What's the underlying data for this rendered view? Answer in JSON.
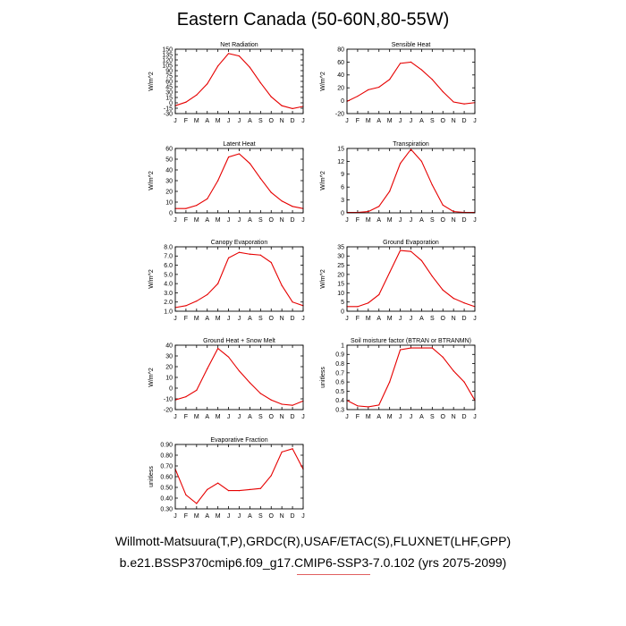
{
  "title": "Eastern Canada (50-60N,80-55W)",
  "footer": {
    "line1": "Willmott-Matsuura(T,P),GRDC(R),USAF/ETAC(S),FLUXNET(LHF,GPP)",
    "line2": "b.e21.BSSP370cmip6.f09_g17.CMIP6-SSP3-7.0.102 (yrs 2075-2099)"
  },
  "colors": {
    "line": "#e60000",
    "axis": "#000000"
  },
  "chart_data": [
    {
      "type": "line",
      "title": "Net Radiation",
      "ylabel": "W/m^2",
      "xlabel": "",
      "categories": [
        "J",
        "F",
        "M",
        "A",
        "M",
        "J",
        "J",
        "A",
        "S",
        "O",
        "N",
        "D",
        "J"
      ],
      "values": [
        -8,
        2,
        22,
        53,
        103,
        138,
        131,
        99,
        56,
        17,
        -8,
        -16,
        -10
      ],
      "ylim": [
        -30,
        150
      ],
      "yticks": [
        -30,
        -15,
        0,
        15,
        30,
        45,
        60,
        75,
        90,
        105,
        120,
        135,
        150
      ],
      "grid": false
    },
    {
      "type": "line",
      "title": "Sensible Heat",
      "ylabel": "W/m^2",
      "xlabel": "",
      "categories": [
        "J",
        "F",
        "M",
        "A",
        "M",
        "J",
        "J",
        "A",
        "S",
        "O",
        "N",
        "D",
        "J"
      ],
      "values": [
        -1,
        7,
        17,
        21,
        33,
        58,
        60,
        48,
        33,
        14,
        -2,
        -5,
        -3
      ],
      "ylim": [
        -20,
        80
      ],
      "yticks": [
        -20,
        0,
        20,
        40,
        60,
        80
      ],
      "grid": false
    },
    {
      "type": "line",
      "title": "Latent Heat",
      "ylabel": "W/m^2",
      "xlabel": "",
      "categories": [
        "J",
        "F",
        "M",
        "A",
        "M",
        "J",
        "J",
        "A",
        "S",
        "O",
        "N",
        "D",
        "J"
      ],
      "values": [
        4,
        4,
        7,
        13,
        30,
        52,
        55,
        46,
        32,
        19,
        11,
        6,
        4
      ],
      "ylim": [
        0,
        60
      ],
      "yticks": [
        0,
        10,
        20,
        30,
        40,
        50,
        60
      ],
      "grid": false
    },
    {
      "type": "line",
      "title": "Transpiration",
      "ylabel": "W/m^2",
      "xlabel": "",
      "categories": [
        "J",
        "F",
        "M",
        "A",
        "M",
        "J",
        "J",
        "A",
        "S",
        "O",
        "N",
        "D",
        "J"
      ],
      "values": [
        0.1,
        0.1,
        0.3,
        1.5,
        5,
        11.5,
        14.8,
        12,
        6.5,
        1.8,
        0.3,
        0.1,
        0.1
      ],
      "ylim": [
        0,
        15
      ],
      "yticks": [
        0,
        3,
        6,
        9,
        12,
        15
      ],
      "grid": false
    },
    {
      "type": "line",
      "title": "Canopy Evaporation",
      "ylabel": "W/m^2",
      "xlabel": "",
      "categories": [
        "J",
        "F",
        "M",
        "A",
        "M",
        "J",
        "J",
        "A",
        "S",
        "O",
        "N",
        "D",
        "J"
      ],
      "values": [
        1.4,
        1.6,
        2.1,
        2.8,
        4.0,
        6.8,
        7.4,
        7.2,
        7.1,
        6.3,
        3.8,
        2.0,
        1.6
      ],
      "ylim": [
        1.0,
        8.0
      ],
      "yticks": [
        1.0,
        2.0,
        3.0,
        4.0,
        5.0,
        6.0,
        7.0,
        8.0
      ],
      "yformat": 1,
      "grid": false
    },
    {
      "type": "line",
      "title": "Ground Evaporation",
      "ylabel": "W/m^2",
      "xlabel": "",
      "categories": [
        "J",
        "F",
        "M",
        "A",
        "M",
        "J",
        "J",
        "A",
        "S",
        "O",
        "N",
        "D",
        "J"
      ],
      "values": [
        2.5,
        2.5,
        4.5,
        9,
        21,
        33,
        32.5,
        27.5,
        19,
        11.5,
        7,
        4.5,
        2.5
      ],
      "ylim": [
        0,
        35
      ],
      "yticks": [
        0,
        5,
        10,
        15,
        20,
        25,
        30,
        35
      ],
      "grid": false
    },
    {
      "type": "line",
      "title": "Ground Heat + Snow Melt",
      "ylabel": "W/m^2",
      "xlabel": "",
      "categories": [
        "J",
        "F",
        "M",
        "A",
        "M",
        "J",
        "J",
        "A",
        "S",
        "O",
        "N",
        "D",
        "J"
      ],
      "values": [
        -11,
        -8,
        -2,
        18,
        37,
        29,
        16,
        5,
        -5,
        -11,
        -15,
        -16,
        -12
      ],
      "ylim": [
        -20,
        40
      ],
      "yticks": [
        -20,
        -10,
        0,
        10,
        20,
        30,
        40
      ],
      "grid": false
    },
    {
      "type": "line",
      "title": "Soil moisture factor (BTRAN or BTRANMN)",
      "ylabel": "unitless",
      "xlabel": "",
      "categories": [
        "J",
        "F",
        "M",
        "A",
        "M",
        "J",
        "J",
        "A",
        "S",
        "O",
        "N",
        "D",
        "J"
      ],
      "values": [
        0.4,
        0.34,
        0.33,
        0.35,
        0.6,
        0.95,
        0.97,
        0.97,
        0.97,
        0.87,
        0.72,
        0.6,
        0.4
      ],
      "ylim": [
        0.3,
        1.0
      ],
      "yticks": [
        0.3,
        0.4,
        0.5,
        0.6,
        0.7,
        0.8,
        0.9,
        1
      ],
      "yformat": "auto1",
      "grid": false
    },
    {
      "type": "line",
      "title": "Evaporative Fraction",
      "ylabel": "unitless",
      "xlabel": "",
      "categories": [
        "J",
        "F",
        "M",
        "A",
        "M",
        "J",
        "J",
        "A",
        "S",
        "O",
        "N",
        "D",
        "J"
      ],
      "values": [
        0.67,
        0.43,
        0.35,
        0.48,
        0.54,
        0.47,
        0.47,
        0.48,
        0.49,
        0.61,
        0.83,
        0.86,
        0.67
      ],
      "ylim": [
        0.3,
        0.9
      ],
      "yticks": [
        0.3,
        0.4,
        0.5,
        0.6,
        0.7,
        0.8,
        0.9
      ],
      "yformat": 2,
      "grid": false
    }
  ]
}
